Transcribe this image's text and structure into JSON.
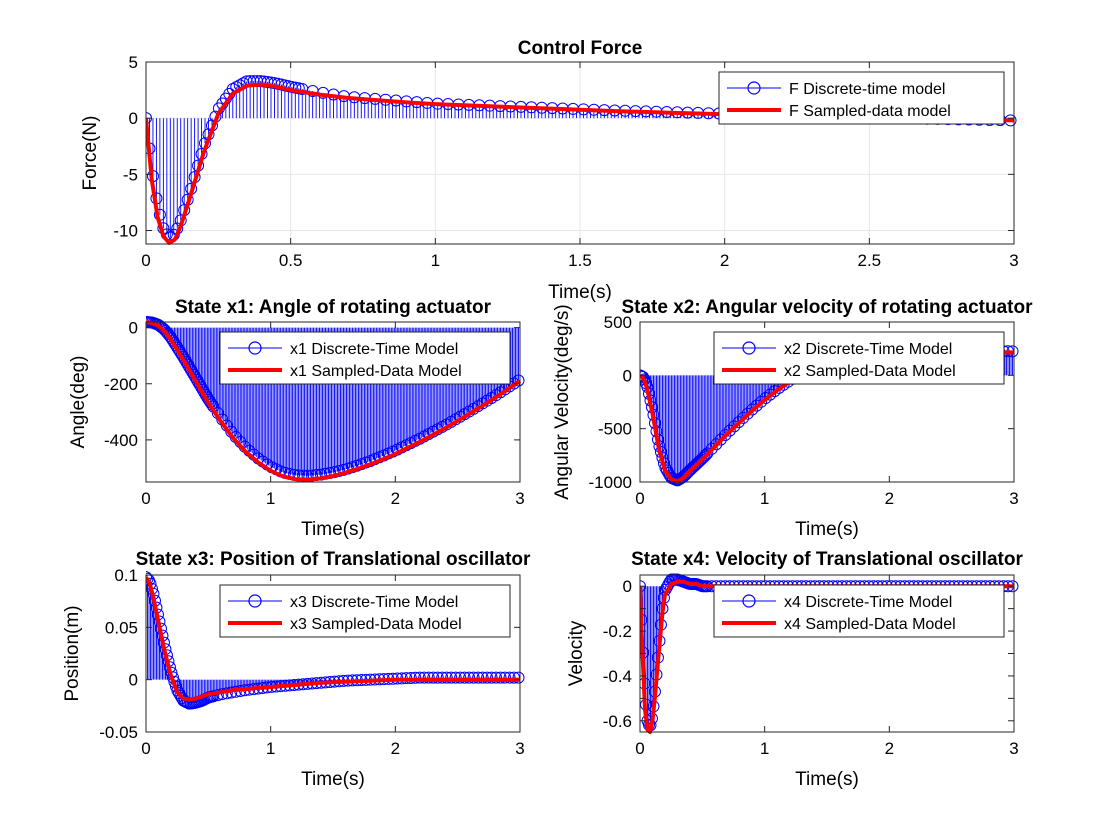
{
  "chart_data": [
    {
      "id": "force",
      "type": "line",
      "title": "Control Force",
      "xlabel": "Time(s)",
      "ylabel": "Force(N)",
      "xlim": [
        0,
        3
      ],
      "ylim": [
        -11.2,
        5
      ],
      "xticks": [
        0,
        0.5,
        1,
        1.5,
        2,
        2.5,
        3
      ],
      "xtick_labels": [
        "0",
        "0.5",
        "1",
        "1.5",
        "2",
        "2.5",
        "3"
      ],
      "yticks": [
        5,
        0,
        -5,
        -10
      ],
      "ytick_labels": [
        "5",
        "0",
        "-5",
        "-10"
      ],
      "grid": true,
      "legend_position": "top-right",
      "series": [
        {
          "name": "F Discrete-time model",
          "style": "stem",
          "color": "#0000ff",
          "x": [
            0,
            0.02,
            0.04,
            0.06,
            0.08,
            0.1,
            0.12,
            0.15,
            0.2,
            0.25,
            0.3,
            0.35,
            0.4,
            0.45,
            0.5,
            0.6,
            0.7,
            0.8,
            0.9,
            1.0,
            1.2,
            1.4,
            1.6,
            1.8,
            2.0,
            2.2,
            2.4,
            2.6,
            2.8,
            3.0
          ],
          "y": [
            0,
            -4.5,
            -7.8,
            -9.8,
            -10.7,
            -10.3,
            -9.1,
            -6.8,
            -2.5,
            0.8,
            2.6,
            3.3,
            3.3,
            3.1,
            2.8,
            2.3,
            1.9,
            1.7,
            1.5,
            1.3,
            1.1,
            0.9,
            0.7,
            0.55,
            0.4,
            0.25,
            0.1,
            0.0,
            -0.1,
            -0.2
          ]
        },
        {
          "name": "F Sampled-data model",
          "style": "line",
          "color": "#ff0000",
          "x": [
            0,
            0.02,
            0.04,
            0.06,
            0.08,
            0.1,
            0.12,
            0.15,
            0.2,
            0.25,
            0.3,
            0.35,
            0.4,
            0.45,
            0.5,
            0.6,
            0.7,
            0.8,
            0.9,
            1.0,
            1.2,
            1.4,
            1.6,
            1.8,
            2.0,
            2.2,
            2.4,
            2.6,
            2.8,
            3.0
          ],
          "y": [
            0,
            -5.5,
            -8.8,
            -10.5,
            -11.1,
            -10.8,
            -9.6,
            -7.2,
            -3.0,
            0.4,
            2.2,
            2.9,
            3.0,
            2.8,
            2.5,
            2.1,
            1.8,
            1.6,
            1.4,
            1.25,
            1.05,
            0.85,
            0.65,
            0.5,
            0.35,
            0.2,
            0.05,
            -0.05,
            -0.12,
            -0.2
          ]
        }
      ]
    },
    {
      "id": "x1",
      "type": "line",
      "title": "State x1: Angle of rotating actuator",
      "xlabel": "Time(s)",
      "ylabel": "Angle(deg)",
      "xlim": [
        0,
        3
      ],
      "ylim": [
        -550,
        20
      ],
      "xticks": [
        0,
        1,
        2,
        3
      ],
      "xtick_labels": [
        "0",
        "1",
        "2",
        "3"
      ],
      "yticks": [
        0,
        -200,
        -400
      ],
      "ytick_labels": [
        "0",
        "-200",
        "-400"
      ],
      "grid": false,
      "legend_position": "top-right",
      "series": [
        {
          "name": "x1 Discrete-Time Model",
          "style": "stem",
          "color": "#0000ff",
          "x": [
            0,
            0.05,
            0.1,
            0.15,
            0.2,
            0.3,
            0.4,
            0.5,
            0.6,
            0.7,
            0.8,
            0.9,
            1.0,
            1.1,
            1.2,
            1.3,
            1.4,
            1.5,
            1.6,
            1.7,
            1.8,
            1.9,
            2.0,
            2.2,
            2.4,
            2.6,
            2.8,
            3.0
          ],
          "y": [
            20,
            18,
            10,
            -8,
            -35,
            -105,
            -180,
            -255,
            -320,
            -380,
            -428,
            -466,
            -496,
            -516,
            -526,
            -528,
            -524,
            -516,
            -505,
            -491,
            -475,
            -457,
            -438,
            -395,
            -348,
            -297,
            -243,
            -185
          ]
        },
        {
          "name": "x1 Sampled-Data Model",
          "style": "line",
          "color": "#ff0000",
          "x": [
            0,
            0.05,
            0.1,
            0.15,
            0.2,
            0.3,
            0.4,
            0.5,
            0.6,
            0.7,
            0.8,
            0.9,
            1.0,
            1.1,
            1.2,
            1.3,
            1.4,
            1.5,
            1.6,
            1.7,
            1.8,
            1.9,
            2.0,
            2.2,
            2.4,
            2.6,
            2.8,
            3.0
          ],
          "y": [
            20,
            16,
            6,
            -14,
            -43,
            -115,
            -192,
            -268,
            -334,
            -394,
            -442,
            -480,
            -510,
            -530,
            -540,
            -541,
            -537,
            -529,
            -517,
            -503,
            -487,
            -469,
            -450,
            -406,
            -358,
            -306,
            -250,
            -190
          ]
        }
      ]
    },
    {
      "id": "x2",
      "type": "line",
      "title": "State x2: Angular velocity of rotating actuator",
      "xlabel": "Time(s)",
      "ylabel": "Angular Velocity(deg/s)",
      "xlim": [
        0,
        3
      ],
      "ylim": [
        -1000,
        500
      ],
      "xticks": [
        0,
        1,
        2,
        3
      ],
      "xtick_labels": [
        "0",
        "1",
        "2",
        "3"
      ],
      "yticks": [
        500,
        0,
        -500,
        -1000
      ],
      "ytick_labels": [
        "500",
        "0",
        "-500",
        "-1000"
      ],
      "grid": false,
      "legend_position": "top-right",
      "series": [
        {
          "name": "x2 Discrete-Time Model",
          "style": "stem",
          "color": "#0000ff",
          "x": [
            0,
            0.03,
            0.06,
            0.1,
            0.15,
            0.2,
            0.25,
            0.3,
            0.35,
            0.4,
            0.5,
            0.6,
            0.7,
            0.8,
            0.9,
            1.0,
            1.1,
            1.2,
            1.3,
            1.4,
            1.6,
            1.8,
            2.0,
            2.2,
            2.4,
            2.6,
            2.8,
            2.9,
            3.0
          ],
          "y": [
            0,
            -20,
            -110,
            -320,
            -640,
            -860,
            -960,
            -985,
            -950,
            -890,
            -780,
            -660,
            -540,
            -430,
            -320,
            -220,
            -130,
            -50,
            20,
            80,
            150,
            190,
            210,
            220,
            225,
            228,
            228,
            226,
            225
          ]
        },
        {
          "name": "x2 Sampled-Data Model",
          "style": "line",
          "color": "#ff0000",
          "x": [
            0,
            0.03,
            0.06,
            0.1,
            0.15,
            0.2,
            0.25,
            0.3,
            0.35,
            0.4,
            0.5,
            0.6,
            0.7,
            0.8,
            0.9,
            1.0,
            1.1,
            1.2,
            1.3,
            1.4,
            1.6,
            1.8,
            2.0,
            2.2,
            2.4,
            2.6,
            2.8,
            2.9,
            3.0
          ],
          "y": [
            0,
            -30,
            -140,
            -360,
            -680,
            -890,
            -975,
            -995,
            -960,
            -900,
            -790,
            -670,
            -550,
            -440,
            -330,
            -230,
            -140,
            -60,
            10,
            70,
            140,
            180,
            200,
            210,
            215,
            218,
            218,
            216,
            215
          ]
        }
      ]
    },
    {
      "id": "x3",
      "type": "line",
      "title": "State x3: Position of Translational oscillator",
      "xlabel": "Time(s)",
      "ylabel": "Position(m)",
      "xlim": [
        0,
        3
      ],
      "ylim": [
        -0.05,
        0.1
      ],
      "xticks": [
        0,
        1,
        2,
        3
      ],
      "xtick_labels": [
        "0",
        "1",
        "2",
        "3"
      ],
      "yticks": [
        0.1,
        0.05,
        0,
        -0.05
      ],
      "ytick_labels": [
        "0.1",
        "0.05",
        "0",
        "-0.05"
      ],
      "grid": false,
      "legend_position": "top-right",
      "series": [
        {
          "name": "x3 Discrete-Time Model",
          "style": "stem",
          "color": "#0000ff",
          "x": [
            0,
            0.03,
            0.06,
            0.1,
            0.15,
            0.2,
            0.25,
            0.3,
            0.35,
            0.4,
            0.45,
            0.5,
            0.6,
            0.7,
            0.8,
            1.0,
            1.2,
            1.4,
            1.6,
            1.8,
            2.0,
            2.2,
            2.4,
            2.6,
            2.8,
            3.0
          ],
          "y": [
            0.098,
            0.094,
            0.082,
            0.06,
            0.032,
            0.008,
            -0.01,
            -0.02,
            -0.023,
            -0.022,
            -0.02,
            -0.017,
            -0.014,
            -0.012,
            -0.01,
            -0.007,
            -0.005,
            -0.003,
            -0.001,
            0.0,
            0.001,
            0.002,
            0.002,
            0.002,
            0.002,
            0.002
          ]
        },
        {
          "name": "x3 Sampled-Data Model",
          "style": "line",
          "color": "#ff0000",
          "x": [
            0,
            0.03,
            0.06,
            0.1,
            0.15,
            0.2,
            0.25,
            0.3,
            0.35,
            0.4,
            0.45,
            0.5,
            0.6,
            0.7,
            0.8,
            1.0,
            1.2,
            1.4,
            1.6,
            1.8,
            2.0,
            2.2,
            2.4,
            2.6,
            2.8,
            3.0
          ],
          "y": [
            0.098,
            0.092,
            0.078,
            0.055,
            0.027,
            0.004,
            -0.012,
            -0.018,
            -0.019,
            -0.018,
            -0.016,
            -0.014,
            -0.012,
            -0.01,
            -0.009,
            -0.007,
            -0.005,
            -0.003,
            -0.002,
            -0.001,
            0.0,
            0.0,
            0.0,
            0.0,
            0.0,
            0.0
          ]
        }
      ]
    },
    {
      "id": "x4",
      "type": "line",
      "title": "State x4: Velocity of Translational oscillator",
      "xlabel": "Time(s)",
      "ylabel": "Velocity",
      "xlim": [
        0,
        3
      ],
      "ylim": [
        -0.65,
        0.05
      ],
      "xticks": [
        0,
        1,
        2,
        3
      ],
      "xtick_labels": [
        "0",
        "1",
        "2",
        "3"
      ],
      "yticks": [
        0,
        -0.2,
        -0.4,
        -0.6
      ],
      "ytick_labels": [
        "0",
        "-0.2",
        "-0.4",
        "-0.6"
      ],
      "extra_yticks": [
        -0.1,
        -0.3,
        -0.5
      ],
      "grid": false,
      "legend_position": "top-right",
      "series": [
        {
          "name": "x4 Discrete-Time Model",
          "style": "stem",
          "color": "#0000ff",
          "x": [
            0,
            0.02,
            0.04,
            0.06,
            0.08,
            0.1,
            0.12,
            0.15,
            0.18,
            0.2,
            0.25,
            0.3,
            0.35,
            0.4,
            0.45,
            0.5,
            0.6,
            0.7,
            0.8,
            1.0,
            1.2,
            1.5,
            2.0,
            2.5,
            3.0
          ],
          "y": [
            0,
            -0.25,
            -0.48,
            -0.6,
            -0.63,
            -0.58,
            -0.47,
            -0.28,
            -0.1,
            -0.02,
            0.03,
            0.03,
            0.02,
            0.01,
            0.01,
            0.0,
            0.0,
            0.0,
            0.0,
            0.0,
            0.0,
            0.0,
            0.0,
            0.0,
            0.0
          ]
        },
        {
          "name": "x4 Sampled-Data Model",
          "style": "line",
          "color": "#ff0000",
          "x": [
            0,
            0.02,
            0.04,
            0.06,
            0.08,
            0.1,
            0.12,
            0.15,
            0.18,
            0.2,
            0.25,
            0.3,
            0.35,
            0.4,
            0.45,
            0.5,
            0.6,
            0.7,
            0.8,
            1.0,
            1.2,
            1.5,
            2.0,
            2.5,
            3.0
          ],
          "y": [
            0,
            -0.3,
            -0.55,
            -0.64,
            -0.65,
            -0.6,
            -0.49,
            -0.3,
            -0.12,
            -0.04,
            0.01,
            0.02,
            0.02,
            0.01,
            0.01,
            0.0,
            0.0,
            0.0,
            0.0,
            0.0,
            0.0,
            0.0,
            0.0,
            0.0,
            0.0
          ]
        }
      ]
    }
  ]
}
